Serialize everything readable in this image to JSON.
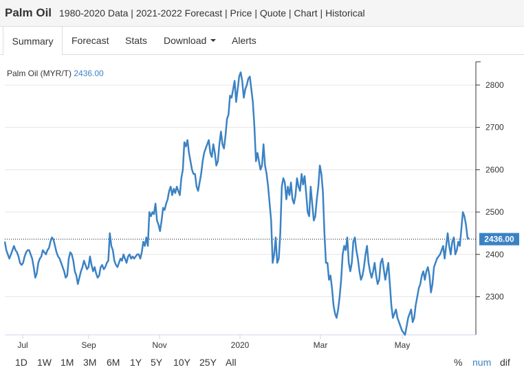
{
  "header": {
    "name": "Palm Oil",
    "subtitle": "1980-2020 Data | 2021-2022 Forecast | Price | Quote | Chart | Historical"
  },
  "tabs": [
    {
      "label": "Summary",
      "active": true
    },
    {
      "label": "Forecast"
    },
    {
      "label": "Stats"
    },
    {
      "label": "Download"
    },
    {
      "label": "Alerts"
    }
  ],
  "ranges": [
    "1D",
    "1W",
    "1M",
    "3M",
    "6M",
    "1Y",
    "5Y",
    "10Y",
    "25Y",
    "All"
  ],
  "modes": [
    "%",
    "num",
    "dif"
  ],
  "colors": {
    "line": "#3b82c4",
    "accent": "#3b82c4",
    "grid": "#e6e6e6",
    "last_price_bg": "#3b82c4"
  },
  "chart_data": {
    "type": "line",
    "series_label": "Palm Oil (MYR/T)",
    "last_value": "2436.00",
    "last_price_label": "2436.00",
    "x_labels": [
      "Jul",
      "Sep",
      "Nov",
      "2020",
      "Mar",
      "May"
    ],
    "y_ticks": [
      2300,
      2400,
      2500,
      2600,
      2700,
      2800
    ],
    "ylim": [
      2210,
      2855
    ],
    "grid": true,
    "reference_line": 2436,
    "values": [
      2430,
      2410,
      2400,
      2390,
      2400,
      2410,
      2420,
      2410,
      2405,
      2395,
      2380,
      2375,
      2380,
      2395,
      2405,
      2410,
      2410,
      2400,
      2390,
      2370,
      2345,
      2355,
      2380,
      2390,
      2395,
      2410,
      2405,
      2400,
      2410,
      2415,
      2430,
      2440,
      2435,
      2420,
      2405,
      2395,
      2390,
      2380,
      2370,
      2360,
      2345,
      2350,
      2390,
      2405,
      2400,
      2385,
      2360,
      2350,
      2330,
      2345,
      2360,
      2370,
      2385,
      2375,
      2365,
      2370,
      2395,
      2375,
      2360,
      2370,
      2355,
      2345,
      2350,
      2370,
      2375,
      2365,
      2370,
      2380,
      2385,
      2450,
      2420,
      2410,
      2385,
      2375,
      2370,
      2380,
      2390,
      2385,
      2400,
      2390,
      2380,
      2395,
      2400,
      2390,
      2395,
      2390,
      2395,
      2400,
      2400,
      2390,
      2405,
      2430,
      2420,
      2440,
      2420,
      2500,
      2490,
      2500,
      2495,
      2520,
      2480,
      2470,
      2455,
      2480,
      2510,
      2505,
      2520,
      2530,
      2550,
      2560,
      2540,
      2555,
      2545,
      2560,
      2550,
      2540,
      2580,
      2600,
      2665,
      2655,
      2670,
      2640,
      2620,
      2600,
      2590,
      2590,
      2560,
      2550,
      2570,
      2590,
      2620,
      2640,
      2650,
      2660,
      2670,
      2640,
      2630,
      2660,
      2640,
      2610,
      2620,
      2660,
      2690,
      2660,
      2650,
      2680,
      2720,
      2730,
      2775,
      2770,
      2790,
      2810,
      2760,
      2790,
      2820,
      2830,
      2810,
      2770,
      2790,
      2800,
      2815,
      2820,
      2790,
      2760,
      2700,
      2620,
      2640,
      2620,
      2600,
      2610,
      2660,
      2610,
      2590,
      2560,
      2520,
      2480,
      2380,
      2400,
      2440,
      2380,
      2390,
      2450,
      2560,
      2580,
      2570,
      2530,
      2560,
      2540,
      2570,
      2530,
      2520,
      2540,
      2580,
      2560,
      2550,
      2590,
      2565,
      2585,
      2545,
      2500,
      2490,
      2560,
      2520,
      2480,
      2490,
      2530,
      2560,
      2610,
      2590,
      2550,
      2450,
      2380,
      2380,
      2340,
      2350,
      2320,
      2280,
      2260,
      2250,
      2270,
      2300,
      2340,
      2400,
      2420,
      2410,
      2440,
      2380,
      2360,
      2380,
      2430,
      2440,
      2410,
      2390,
      2360,
      2340,
      2350,
      2370,
      2400,
      2420,
      2380,
      2360,
      2345,
      2360,
      2380,
      2350,
      2330,
      2340,
      2380,
      2390,
      2365,
      2340,
      2360,
      2380,
      2330,
      2280,
      2250,
      2260,
      2270,
      2250,
      2240,
      2230,
      2220,
      2215,
      2210,
      2230,
      2250,
      2260,
      2270,
      2240,
      2250,
      2280,
      2300,
      2320,
      2330,
      2350,
      2360,
      2340,
      2360,
      2370,
      2350,
      2310,
      2330,
      2370,
      2380,
      2390,
      2395,
      2400,
      2410,
      2420,
      2390,
      2420,
      2450,
      2420,
      2400,
      2430,
      2440,
      2400,
      2410,
      2430,
      2420,
      2460,
      2500,
      2490,
      2470,
      2440,
      2436
    ]
  }
}
